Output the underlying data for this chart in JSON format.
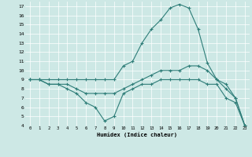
{
  "xlabel": "Humidex (Indice chaleur)",
  "xlim": [
    -0.5,
    23.5
  ],
  "ylim": [
    4,
    17.5
  ],
  "xticks": [
    0,
    1,
    2,
    3,
    4,
    5,
    6,
    7,
    8,
    9,
    10,
    11,
    12,
    13,
    14,
    15,
    16,
    17,
    18,
    19,
    20,
    21,
    22,
    23
  ],
  "yticks": [
    4,
    5,
    6,
    7,
    8,
    9,
    10,
    11,
    12,
    13,
    14,
    15,
    16,
    17
  ],
  "bg_color": "#cde8e5",
  "line_color": "#2e7d78",
  "line1_x": [
    0,
    1,
    2,
    3,
    4,
    5,
    6,
    7,
    8,
    9,
    10,
    11,
    12,
    13,
    14,
    15,
    16,
    17,
    18,
    19,
    20,
    21,
    22,
    23
  ],
  "line1_y": [
    9,
    9,
    9,
    9,
    9,
    9,
    9,
    9,
    9,
    9,
    10.5,
    11,
    13,
    14.5,
    15.5,
    16.8,
    17.2,
    16.8,
    14.5,
    10.8,
    9,
    8.5,
    7,
    4
  ],
  "line2_x": [
    0,
    1,
    2,
    3,
    4,
    5,
    6,
    7,
    8,
    9,
    10,
    11,
    12,
    13,
    14,
    15,
    16,
    17,
    18,
    19,
    20,
    21,
    22,
    23
  ],
  "line2_y": [
    9,
    9,
    8.5,
    8.5,
    8.5,
    8,
    7.5,
    7.5,
    7.5,
    7.5,
    8,
    8.5,
    9,
    9.5,
    10,
    10,
    10,
    10.5,
    10.5,
    10,
    9,
    8,
    7,
    4
  ],
  "line3_x": [
    0,
    1,
    2,
    3,
    4,
    5,
    6,
    7,
    8,
    9,
    10,
    11,
    12,
    13,
    14,
    15,
    16,
    17,
    18,
    19,
    20,
    21,
    22,
    23
  ],
  "line3_y": [
    9,
    9,
    8.5,
    8.5,
    8,
    7.5,
    6.5,
    6,
    4.5,
    5,
    7.5,
    8,
    8.5,
    8.5,
    9,
    9,
    9,
    9,
    9,
    8.5,
    8.5,
    7,
    6.5,
    4
  ]
}
